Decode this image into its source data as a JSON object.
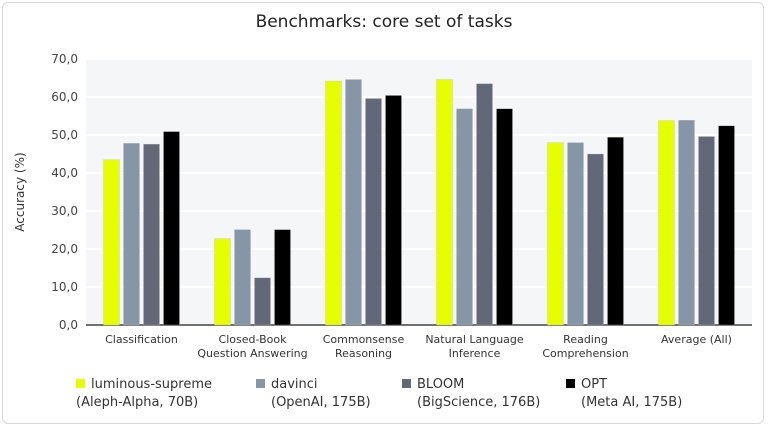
{
  "chart_data": {
    "type": "bar",
    "title": "Benchmarks: core set of tasks",
    "xlabel": "",
    "ylabel": "Accuracy (%)",
    "ylim": [
      0,
      70
    ],
    "yticks": [
      "0,0",
      "10,0",
      "20,0",
      "30,0",
      "40,0",
      "50,0",
      "60,0",
      "70,0"
    ],
    "grid": true,
    "legend_position": "bottom",
    "categories": [
      [
        "Classification"
      ],
      [
        "Closed-Book",
        "Question Answering"
      ],
      [
        "Commonsense",
        "Reasoning"
      ],
      [
        "Natural Language",
        "Inference"
      ],
      [
        "Reading",
        "Comprehension"
      ],
      [
        "Average (All)"
      ]
    ],
    "series": [
      {
        "name": "luminous-supreme",
        "sub": "(Aleph-Alpha, 70B)",
        "color": "#e5ff00",
        "values": [
          43.5,
          22.7,
          64.2,
          64.6,
          48.0,
          53.8
        ]
      },
      {
        "name": "davinci",
        "sub": "(OpenAI, 175B)",
        "color": "#8696a7",
        "values": [
          47.8,
          25.1,
          64.6,
          56.9,
          48.0,
          53.9
        ]
      },
      {
        "name": "BLOOM",
        "sub": "(BigScience, 176B)",
        "color": "#636878",
        "values": [
          47.6,
          12.4,
          59.6,
          63.5,
          45.0,
          49.6
        ]
      },
      {
        "name": "OPT",
        "sub": "(Meta AI, 175B)",
        "color": "#000000",
        "values": [
          50.9,
          25.1,
          60.4,
          56.9,
          49.4,
          52.4
        ]
      }
    ]
  }
}
